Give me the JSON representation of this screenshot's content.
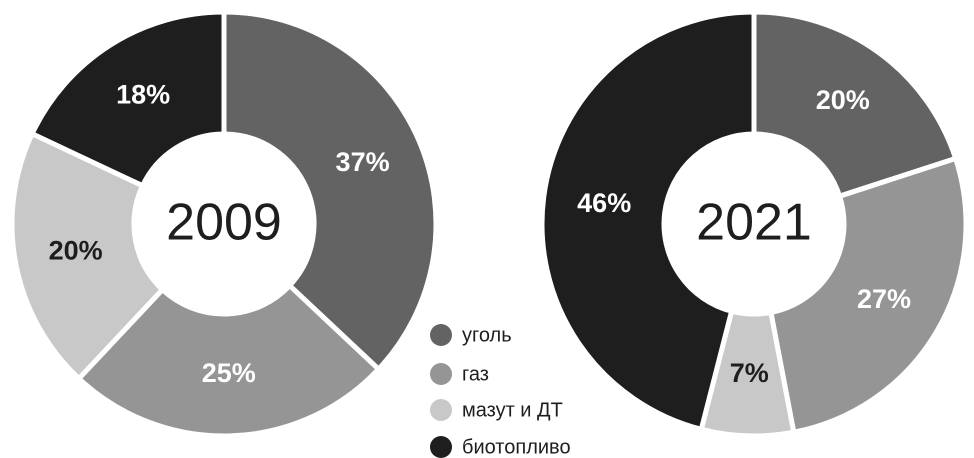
{
  "legend": {
    "labels": [
      "уголь",
      "газ",
      "мазут и ДТ",
      "биотопливо"
    ],
    "colors": [
      "#636363",
      "#959595",
      "#c8c8c8",
      "#1e1e1e"
    ]
  },
  "chart_data": [
    {
      "type": "pie",
      "title": "2009",
      "values": [
        37,
        25,
        20,
        18
      ],
      "value_labels": [
        "37%",
        "25%",
        "20%",
        "18%"
      ]
    },
    {
      "type": "pie",
      "title": "2021",
      "values": [
        20,
        27,
        7,
        46
      ],
      "value_labels": [
        "20%",
        "27%",
        "7%",
        "46%"
      ]
    }
  ]
}
